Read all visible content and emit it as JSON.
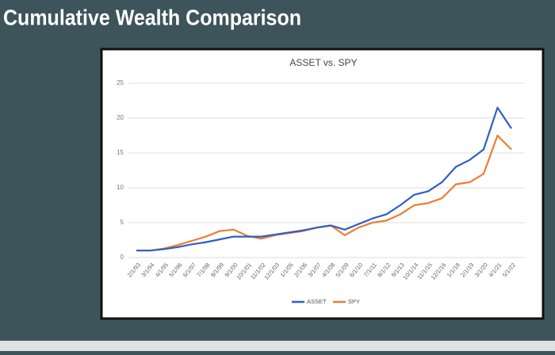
{
  "page_title": "Cumulative Wealth Comparison",
  "chart_data": {
    "type": "line",
    "title": "ASSET vs. SPY",
    "categories": [
      "2/1/93",
      "3/1/94",
      "4/1/95",
      "5/1/96",
      "6/1/97",
      "7/1/98",
      "8/1/99",
      "9/1/00",
      "10/1/01",
      "11/1/02",
      "12/1/03",
      "1/1/05",
      "2/1/06",
      "3/1/07",
      "4/1/08",
      "5/1/09",
      "6/1/10",
      "7/1/11",
      "8/1/12",
      "9/1/13",
      "10/1/14",
      "11/1/15",
      "12/1/16",
      "1/1/18",
      "2/1/19",
      "3/1/20",
      "4/1/21",
      "5/1/22"
    ],
    "series": [
      {
        "name": "ASSET",
        "color": "#2f5fc4",
        "values": [
          1.0,
          1.0,
          1.2,
          1.5,
          1.9,
          2.2,
          2.6,
          3.0,
          3.0,
          3.0,
          3.3,
          3.6,
          3.9,
          4.3,
          4.6,
          4.0,
          4.8,
          5.6,
          6.2,
          7.5,
          9.0,
          9.5,
          10.8,
          13.0,
          14.0,
          15.5,
          21.5,
          18.5
        ]
      },
      {
        "name": "SPY",
        "color": "#ed7d31",
        "values": [
          1.0,
          1.0,
          1.3,
          1.8,
          2.4,
          3.0,
          3.8,
          4.0,
          3.1,
          2.7,
          3.2,
          3.5,
          3.8,
          4.3,
          4.6,
          3.2,
          4.3,
          5.0,
          5.3,
          6.2,
          7.5,
          7.8,
          8.5,
          10.5,
          10.8,
          12.0,
          17.5,
          15.5
        ]
      }
    ],
    "ylim": [
      0,
      25
    ],
    "yticks": [
      0,
      5,
      10,
      15,
      20,
      25
    ],
    "grid": true,
    "legend": "bottom"
  }
}
